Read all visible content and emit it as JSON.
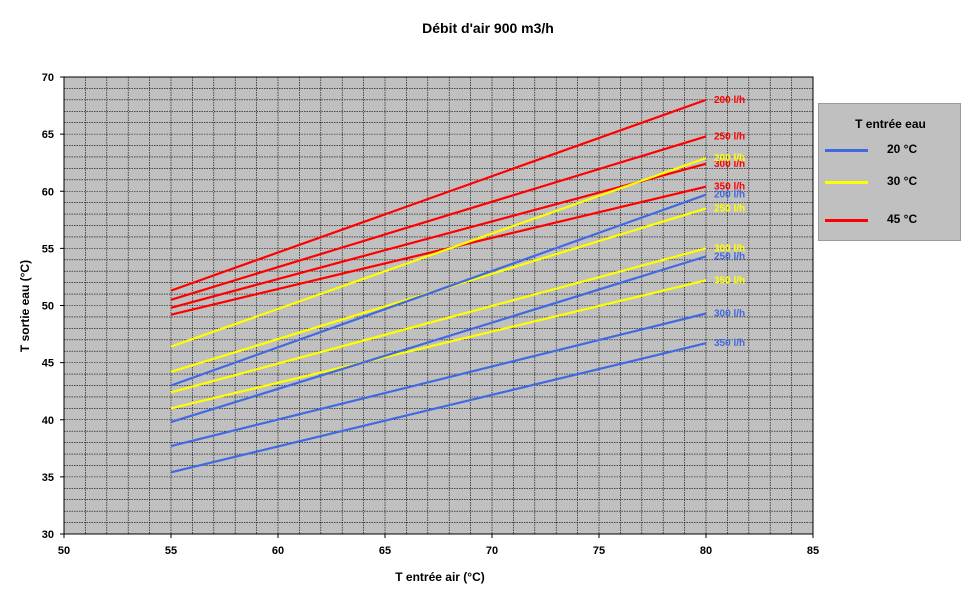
{
  "chart_data": {
    "type": "line",
    "title": "Débit d'air 900 m3/h",
    "xlabel": "T entrée air (°C)",
    "ylabel": "T sortie eau (°C)",
    "xlim": [
      50,
      85
    ],
    "ylim": [
      30,
      70
    ],
    "x_ticks": [
      "50",
      "55",
      "60",
      "65",
      "70",
      "75",
      "80",
      "85"
    ],
    "y_ticks": [
      "30",
      "35",
      "40",
      "45",
      "50",
      "55",
      "60",
      "65",
      "70"
    ],
    "grid": true,
    "legend": {
      "title": "T entrée eau",
      "position": "right",
      "items": [
        {
          "label": "20 °C",
          "color": "#4169e1"
        },
        {
          "label": "30 °C",
          "color": "#ffff00"
        },
        {
          "label": "45 °C",
          "color": "#ff0000"
        }
      ]
    },
    "series": [
      {
        "group": "45 °C",
        "label": "200 l/h",
        "color": "#ff0000",
        "x": [
          55,
          80
        ],
        "y": [
          51.3,
          68.0
        ]
      },
      {
        "group": "45 °C",
        "label": "250 l/h",
        "color": "#ff0000",
        "x": [
          55,
          80
        ],
        "y": [
          50.5,
          64.8
        ]
      },
      {
        "group": "45 °C",
        "label": "300 l/h",
        "color": "#ff0000",
        "x": [
          55,
          80
        ],
        "y": [
          49.8,
          62.4
        ]
      },
      {
        "group": "45 °C",
        "label": "350 l/h",
        "color": "#ff0000",
        "x": [
          55,
          80
        ],
        "y": [
          49.2,
          60.4
        ]
      },
      {
        "group": "30 °C",
        "label": "200 l/h",
        "color": "#ffff00",
        "x": [
          55,
          80
        ],
        "y": [
          46.4,
          62.9
        ]
      },
      {
        "group": "30 °C",
        "label": "250 l/h",
        "color": "#ffff00",
        "x": [
          55,
          80
        ],
        "y": [
          44.2,
          58.5
        ]
      },
      {
        "group": "30 °C",
        "label": "300 l/h",
        "color": "#ffff00",
        "x": [
          55,
          80
        ],
        "y": [
          42.4,
          55.0
        ]
      },
      {
        "group": "30 °C",
        "label": "350 l/h",
        "color": "#ffff00",
        "x": [
          55,
          80
        ],
        "y": [
          41.0,
          52.2
        ]
      },
      {
        "group": "20 °C",
        "label": "200 l/h",
        "color": "#4169e1",
        "x": [
          55,
          80
        ],
        "y": [
          43.0,
          59.7
        ]
      },
      {
        "group": "20 °C",
        "label": "250 l/h",
        "color": "#4169e1",
        "x": [
          55,
          80
        ],
        "y": [
          39.8,
          54.3
        ]
      },
      {
        "group": "20 °C",
        "label": "300 l/h",
        "color": "#4169e1",
        "x": [
          55,
          80
        ],
        "y": [
          37.7,
          49.3
        ]
      },
      {
        "group": "20 °C",
        "label": "350 l/h",
        "color": "#4169e1",
        "x": [
          55,
          80
        ],
        "y": [
          35.4,
          46.7
        ]
      }
    ]
  }
}
